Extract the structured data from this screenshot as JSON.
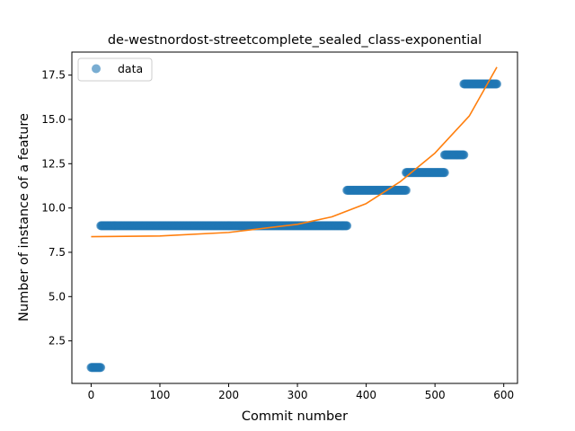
{
  "chart_data": {
    "type": "scatter",
    "title": "de-westnordost-streetcomplete_sealed_class-exponential",
    "xlabel": "Commit number",
    "ylabel": "Number of instance of a feature",
    "xlim": [
      -28,
      620
    ],
    "ylim": [
      0.1,
      18.8
    ],
    "xticks": [
      0,
      100,
      200,
      300,
      400,
      500,
      600
    ],
    "yticks": [
      2.5,
      5.0,
      7.5,
      10.0,
      12.5,
      15.0,
      17.5
    ],
    "ytick_labels": [
      "2.5",
      "5.0",
      "7.5",
      "10.0",
      "12.5",
      "15.0",
      "17.5"
    ],
    "grid": false,
    "legend": {
      "position": "top-left",
      "entries": [
        "data"
      ]
    },
    "series": [
      {
        "name": "data",
        "kind": "points",
        "color": "#1f77b4",
        "segments": [
          {
            "x_start": 0,
            "x_end": 14,
            "y": 1
          },
          {
            "x_start": 14,
            "x_end": 372,
            "y": 9
          },
          {
            "x_start": 372,
            "x_end": 458,
            "y": 11
          },
          {
            "x_start": 458,
            "x_end": 514,
            "y": 12
          },
          {
            "x_start": 514,
            "x_end": 542,
            "y": 13
          },
          {
            "x_start": 542,
            "x_end": 590,
            "y": 17
          }
        ]
      },
      {
        "name": "",
        "kind": "fit",
        "color": "#ff7f0e",
        "points": [
          [
            0,
            8.38
          ],
          [
            100,
            8.42
          ],
          [
            200,
            8.62
          ],
          [
            300,
            9.08
          ],
          [
            350,
            9.5
          ],
          [
            400,
            10.25
          ],
          [
            450,
            11.5
          ],
          [
            500,
            13.1
          ],
          [
            550,
            15.2
          ],
          [
            590,
            17.95
          ]
        ]
      }
    ]
  }
}
